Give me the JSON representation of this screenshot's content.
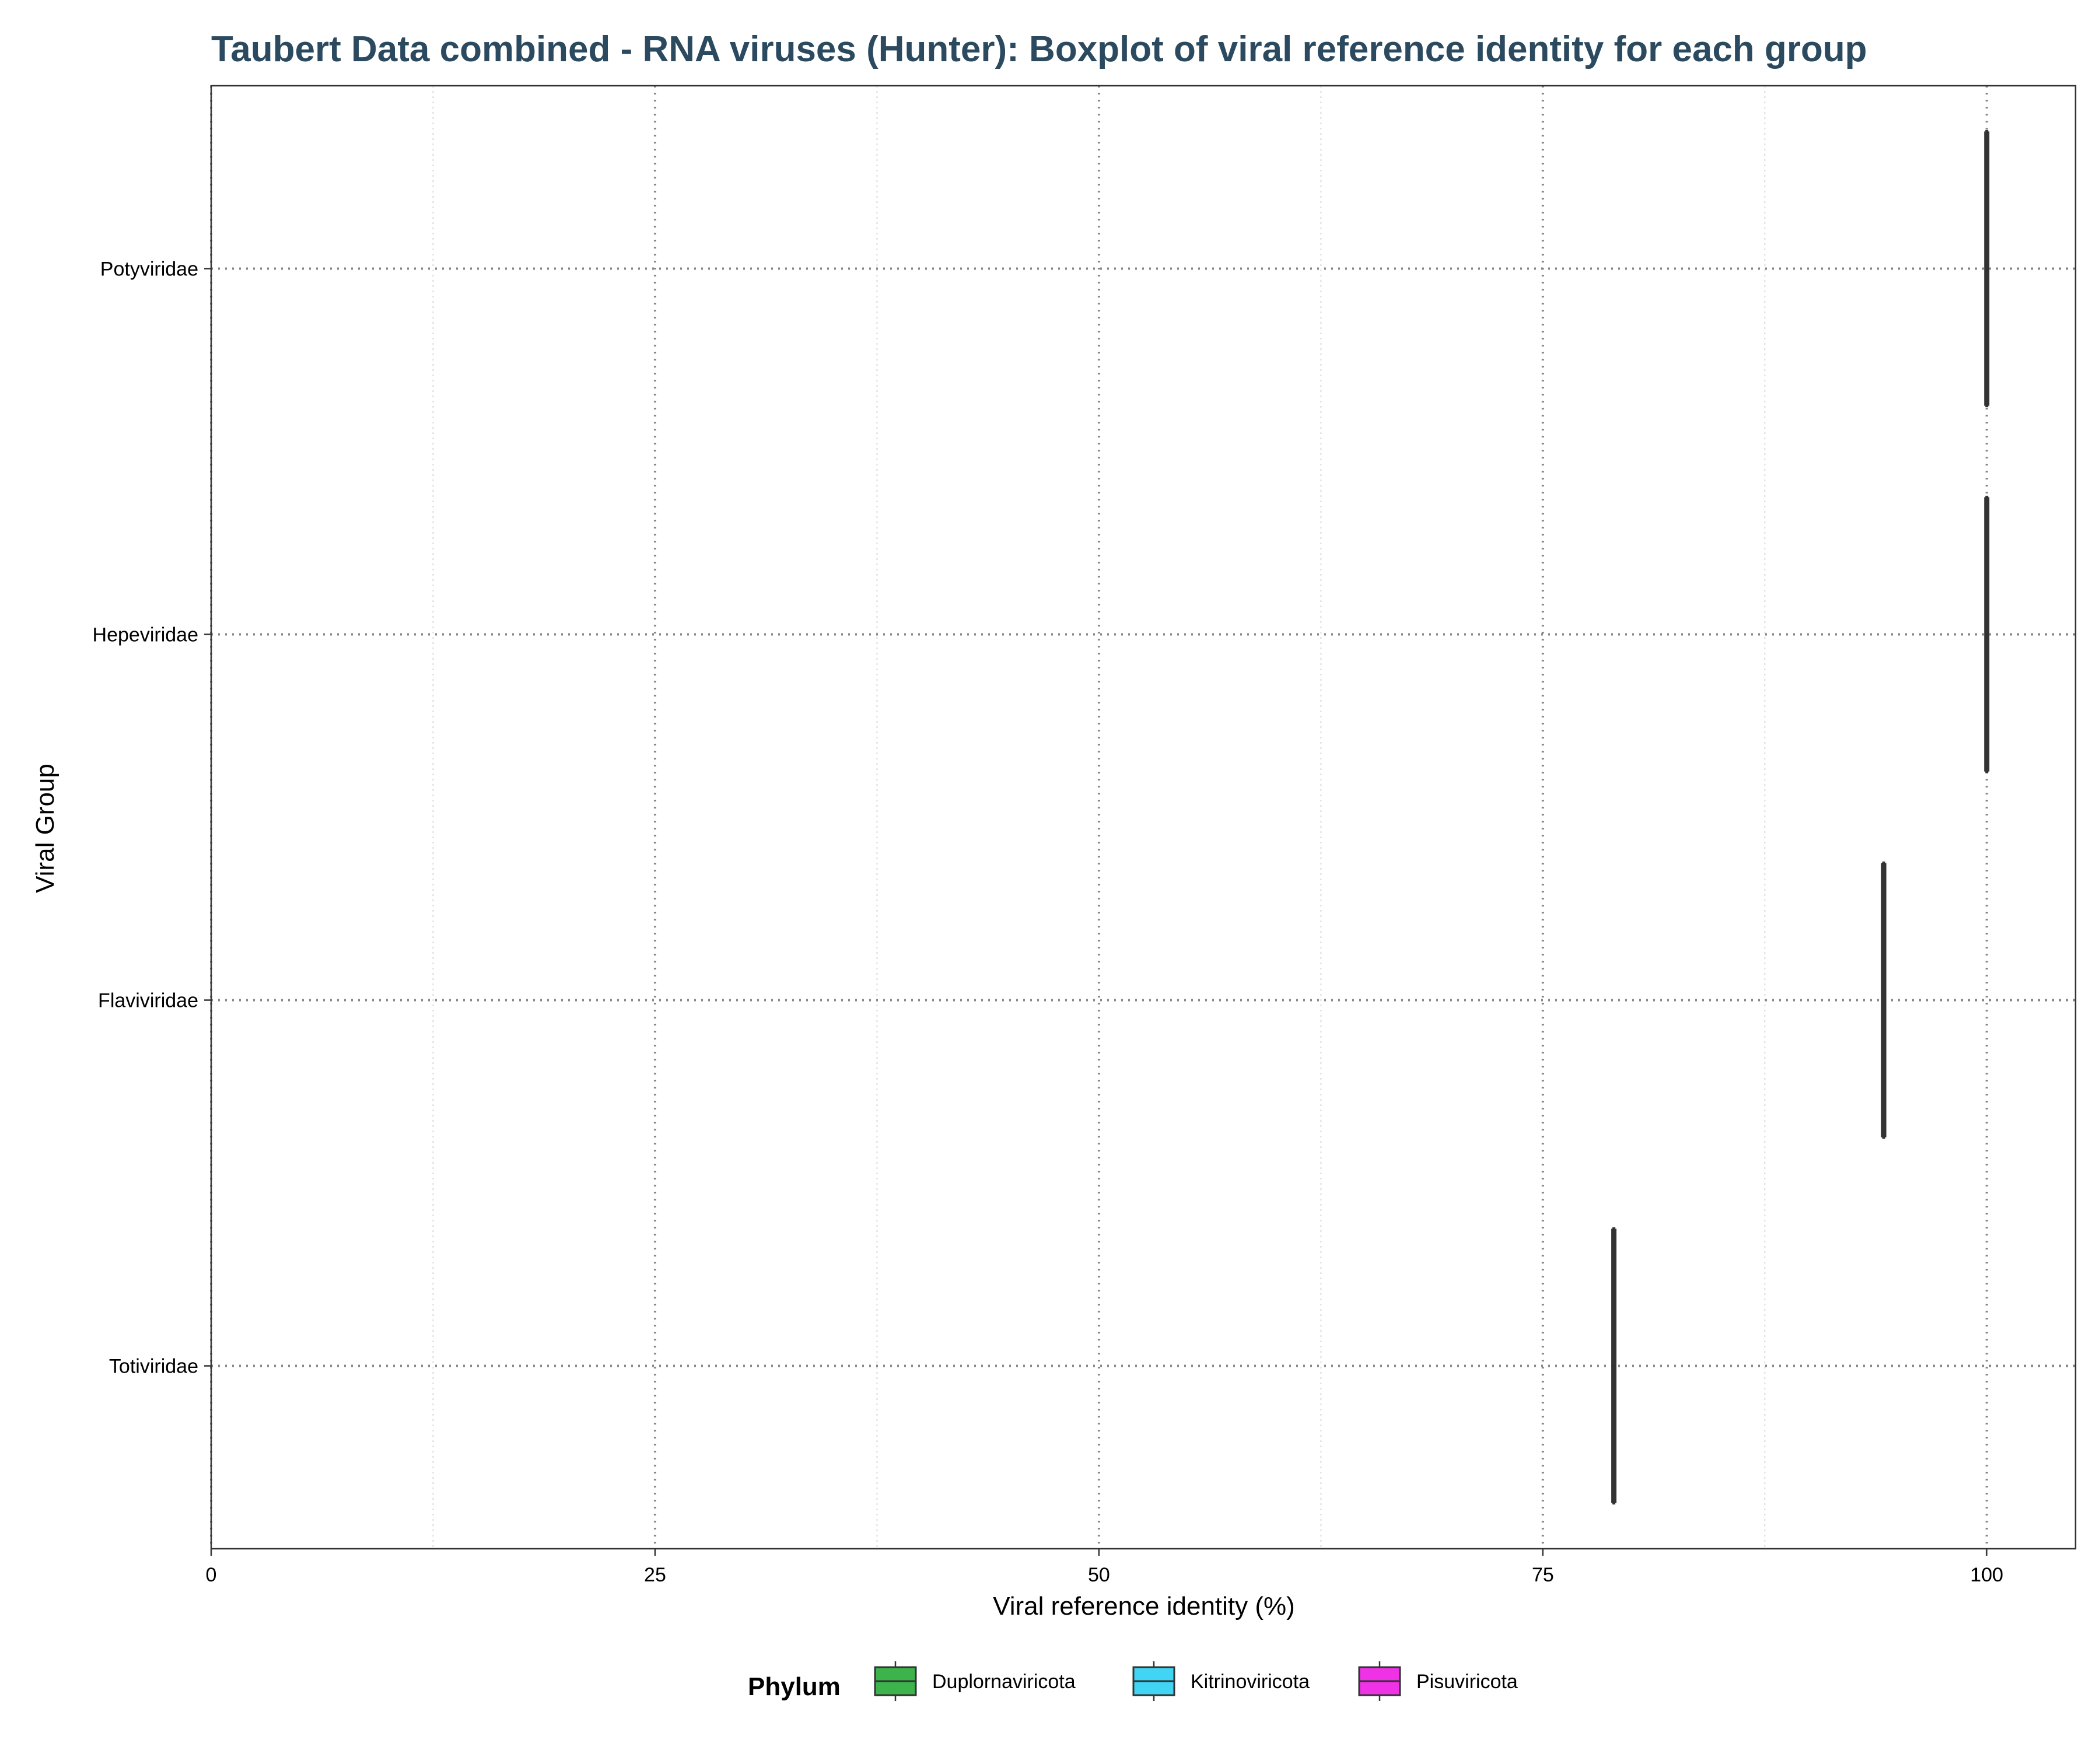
{
  "chart_data": {
    "type": "boxplot",
    "orientation": "horizontal",
    "title": "Taubert Data combined - RNA viruses (Hunter): Boxplot of viral reference identity for each group",
    "xlabel": "Viral reference identity (%)",
    "ylabel": "Viral Group",
    "xlim": [
      0,
      105
    ],
    "x_ticks": [
      0,
      25,
      50,
      75,
      100
    ],
    "x_tick_labels": [
      "0",
      "25",
      "50",
      "75",
      "100"
    ],
    "categories": [
      "Potyviridae",
      "Hepeviridae",
      "Flaviviridae",
      "Totiviridae"
    ],
    "series": [
      {
        "category": "Potyviridae",
        "phylum": "Pisuviricota",
        "min": 100,
        "q1": 100,
        "median": 100,
        "q3": 100,
        "max": 100
      },
      {
        "category": "Hepeviridae",
        "phylum": "Kitrinoviricota",
        "min": 100,
        "q1": 100,
        "median": 100,
        "q3": 100,
        "max": 100
      },
      {
        "category": "Flaviviridae",
        "phylum": "Kitrinoviricota",
        "min": 94.2,
        "q1": 94.2,
        "median": 94.2,
        "q3": 94.2,
        "max": 94.2
      },
      {
        "category": "Totiviridae",
        "phylum": "Duplornaviricota",
        "min": 79,
        "q1": 79,
        "median": 79,
        "q3": 79,
        "max": 79
      }
    ],
    "grid": true,
    "legend": {
      "title": "Phylum",
      "position": "bottom",
      "items": [
        {
          "label": "Duplornaviricota",
          "color": "#3cb44b"
        },
        {
          "label": "Kitrinoviricota",
          "color": "#42d4f4"
        },
        {
          "label": "Pisuviricota",
          "color": "#f032e6"
        }
      ]
    },
    "box_line_color": "#333333"
  }
}
